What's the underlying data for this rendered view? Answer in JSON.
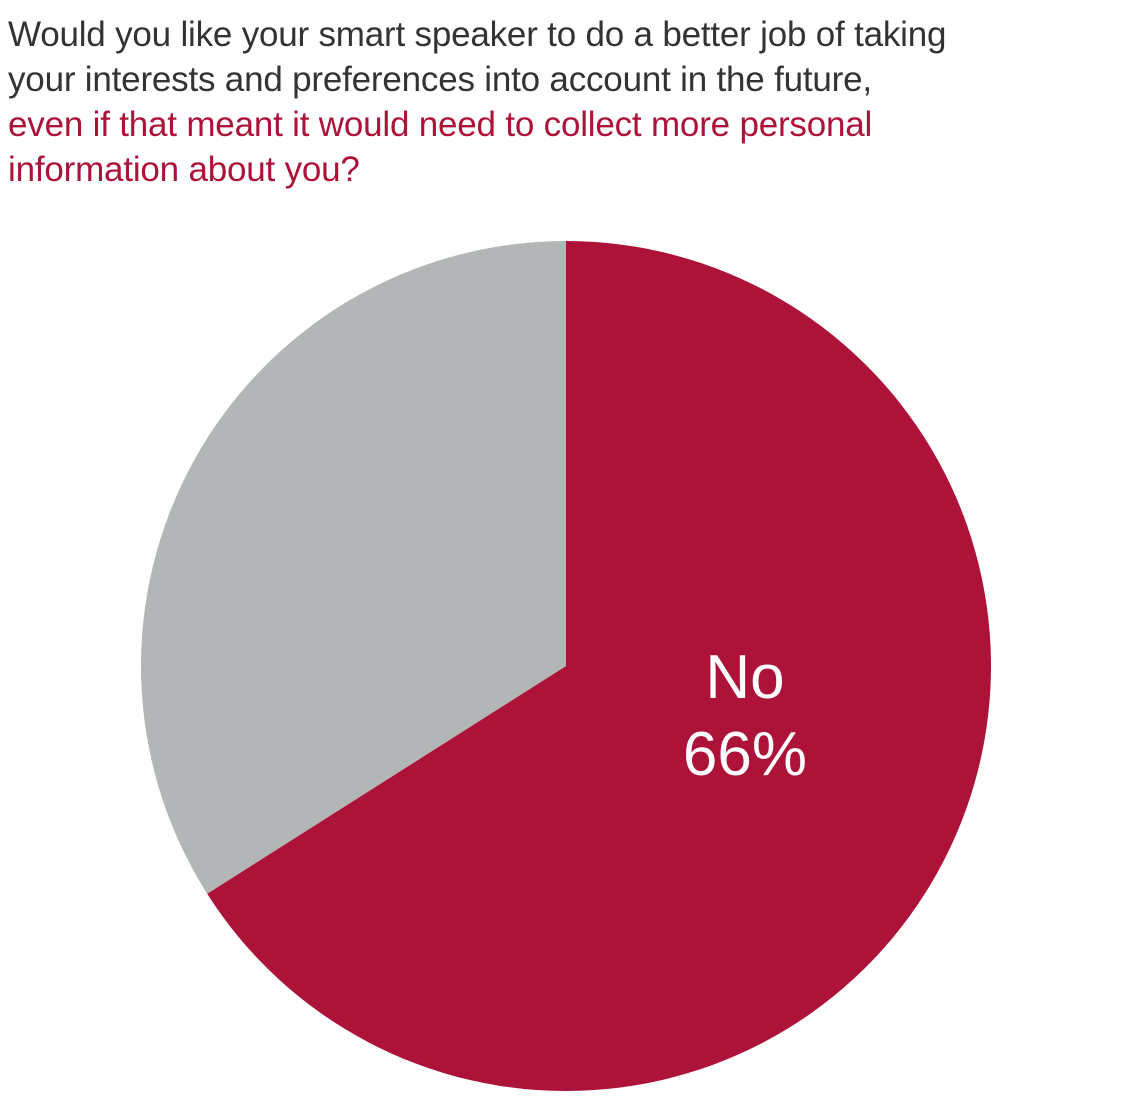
{
  "title": {
    "lines_dark": [
      "Would you like your smart speaker to do a better job of taking",
      "your interests and preferences into account in the future,"
    ],
    "lines_red": [
      "even if that meant it would need to collect more personal",
      "information about you?"
    ]
  },
  "colors": {
    "title_text": "#333333",
    "accent_red": "#ad1238",
    "slice_gray": "#b3b6b7",
    "label_text": "#ffffff"
  },
  "chart_data": {
    "type": "pie",
    "slices": [
      {
        "name": "No",
        "value": 66,
        "color": "#ad1238",
        "label": "No",
        "value_label": "66%"
      },
      {
        "name": "",
        "value": 34,
        "color": "#b3b6b7",
        "label": "",
        "value_label": ""
      }
    ]
  }
}
